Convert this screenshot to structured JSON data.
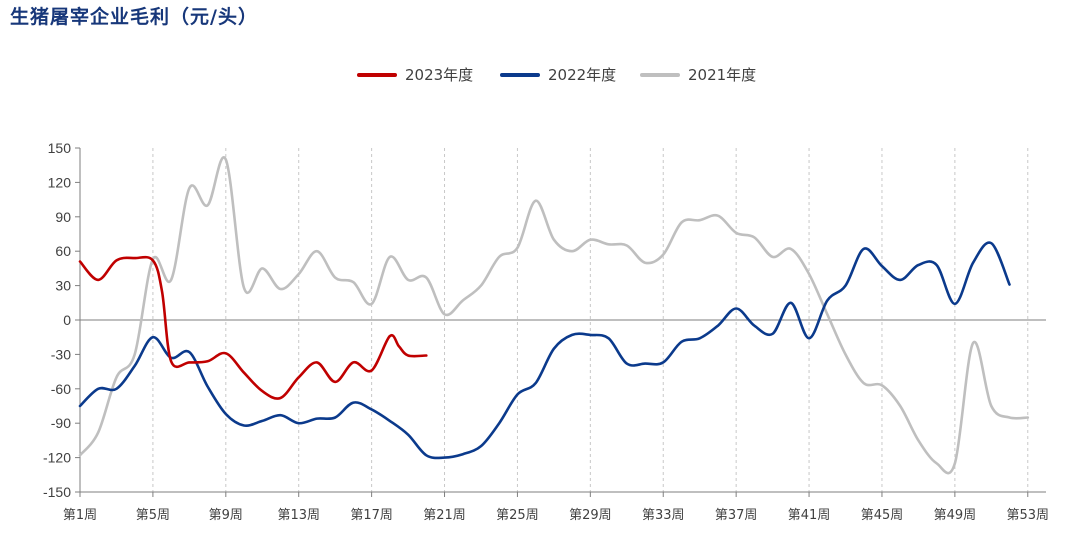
{
  "title": "生猪屠宰企业毛利（元/头）",
  "chart_data": {
    "type": "line",
    "title": "生猪屠宰企业毛利（元/头）",
    "ylabel": "",
    "xlabel": "",
    "ylim": [
      -150,
      150
    ],
    "yticks": [
      150,
      120,
      90,
      60,
      30,
      0,
      -30,
      -60,
      -90,
      -120,
      -150
    ],
    "xlim": [
      1,
      54
    ],
    "x_tick_weeks": [
      1,
      5,
      9,
      13,
      17,
      21,
      25,
      29,
      33,
      37,
      41,
      45,
      49,
      53
    ],
    "x_tick_labels": [
      "第1周",
      "第5周",
      "第9周",
      "第13周",
      "第17周",
      "第21周",
      "第25周",
      "第29周",
      "第33周",
      "第37周",
      "第41周",
      "第45周",
      "第49周",
      "第53周"
    ],
    "grid": "vertical-dashed",
    "legend_position": "top-center",
    "series": [
      {
        "name": "2023年度",
        "color": "#c00000",
        "x": [
          1,
          2,
          3,
          4,
          5,
          5.5,
          6,
          7,
          8,
          9,
          10,
          11,
          12,
          13,
          14,
          15,
          16,
          17,
          18,
          18.5,
          19,
          20
        ],
        "values": [
          51,
          35,
          52,
          54,
          52,
          25,
          -36,
          -37,
          -36,
          -29,
          -46,
          -62,
          -68,
          -50,
          -37,
          -54,
          -37,
          -44,
          -14,
          -23,
          -31,
          -31
        ]
      },
      {
        "name": "2022年度",
        "color": "#0b3a8c",
        "x": [
          1,
          2,
          3,
          4,
          5,
          6,
          7,
          8,
          9,
          10,
          11,
          12,
          13,
          14,
          15,
          16,
          17,
          18,
          19,
          20,
          21,
          22,
          23,
          24,
          25,
          26,
          27,
          28,
          29,
          30,
          31,
          32,
          33,
          34,
          35,
          36,
          37,
          38,
          39,
          40,
          41,
          42,
          43,
          44,
          45,
          46,
          47,
          48,
          49,
          50,
          51,
          52
        ],
        "values": [
          -75,
          -60,
          -60,
          -40,
          -15,
          -33,
          -28,
          -58,
          -82,
          -92,
          -88,
          -83,
          -90,
          -86,
          -85,
          -72,
          -78,
          -88,
          -100,
          -118,
          -120,
          -117,
          -110,
          -90,
          -65,
          -55,
          -25,
          -13,
          -13,
          -16,
          -38,
          -38,
          -37,
          -19,
          -16,
          -5,
          10,
          -5,
          -12,
          15,
          -16,
          17,
          30,
          62,
          47,
          35,
          48,
          48,
          14,
          50,
          67,
          31
        ]
      },
      {
        "name": "2021年度",
        "color": "#bfbfbf",
        "x": [
          1,
          2,
          3,
          4,
          5,
          6,
          7,
          8,
          9,
          10,
          11,
          12,
          13,
          14,
          15,
          16,
          17,
          18,
          19,
          20,
          21,
          22,
          23,
          24,
          25,
          26,
          27,
          28,
          29,
          30,
          31,
          32,
          33,
          34,
          35,
          36,
          37,
          38,
          39,
          40,
          41,
          42,
          43,
          44,
          45,
          46,
          47,
          48,
          49,
          50,
          51,
          52,
          53
        ],
        "values": [
          -118,
          -98,
          -50,
          -30,
          53,
          35,
          115,
          100,
          140,
          28,
          45,
          27,
          40,
          60,
          37,
          33,
          14,
          55,
          35,
          37,
          5,
          17,
          30,
          55,
          63,
          104,
          70,
          60,
          70,
          66,
          65,
          50,
          57,
          85,
          87,
          91,
          76,
          72,
          55,
          62,
          40,
          5,
          -30,
          -55,
          -57,
          -75,
          -105,
          -125,
          -125,
          -20,
          -75,
          -85,
          -85
        ]
      }
    ]
  }
}
